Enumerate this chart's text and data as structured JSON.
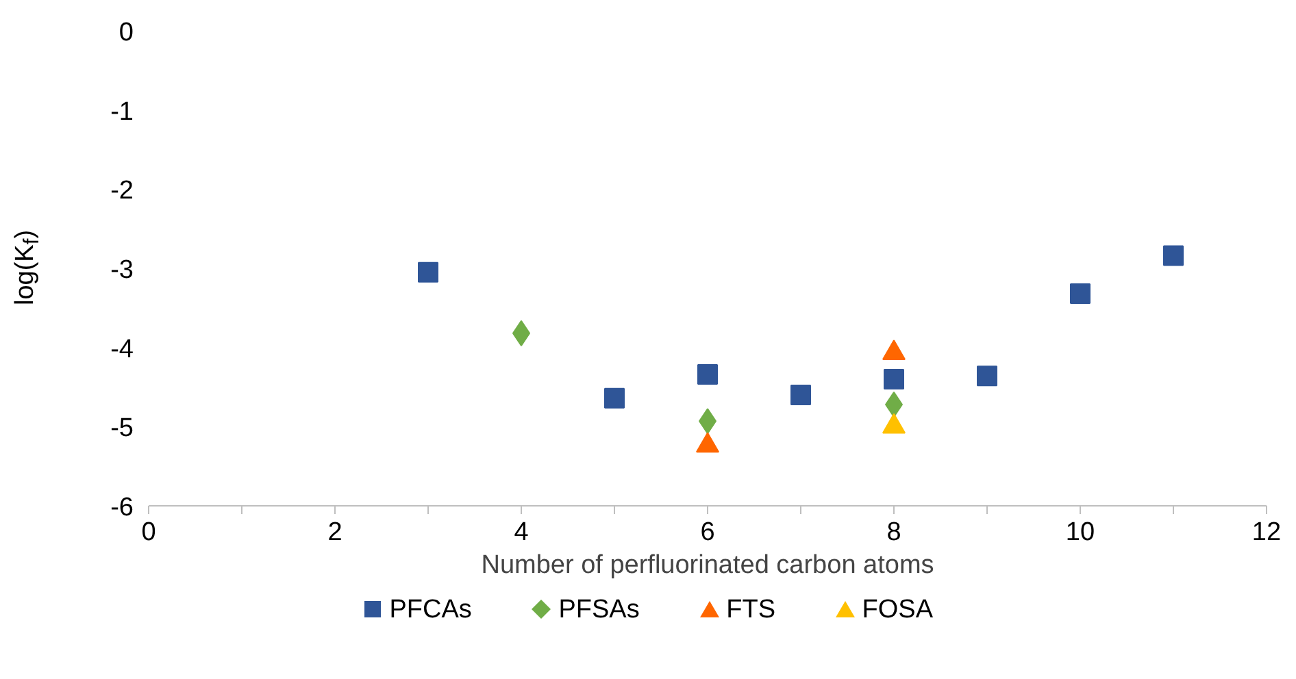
{
  "chart_data": {
    "type": "scatter",
    "xlabel": "Number of perfluorinated carbon atoms",
    "ylabel": "log(K$_{f}$)",
    "xlim": [
      0,
      12
    ],
    "xticks": [
      0,
      {
        "value": 1,
        "label": null
      },
      2,
      {
        "value": 3,
        "label": null
      },
      4,
      {
        "value": 5,
        "label": null
      },
      6,
      {
        "value": 7,
        "label": null
      },
      8,
      {
        "value": 9,
        "label": null
      },
      10,
      {
        "value": 11,
        "label": null
      },
      12
    ],
    "ylim": [
      -6,
      0
    ],
    "yticks": [
      -6,
      -5,
      -4,
      -3,
      -2,
      -1,
      0
    ],
    "grid": false,
    "legend": "bottom",
    "series": [
      {
        "name": "PFCAs",
        "color": "#2f5597",
        "marker": "square",
        "x": [
          3,
          5,
          6,
          7,
          8,
          9,
          10,
          11
        ],
        "values": [
          -3.05,
          -4.64,
          -4.34,
          -4.6,
          -4.4,
          -4.36,
          -3.32,
          -2.84
        ]
      },
      {
        "name": "PFSAs",
        "color": "#70ad47",
        "marker": "diamond",
        "x": [
          4,
          6,
          8
        ],
        "values": [
          -3.82,
          -4.93,
          -4.72
        ]
      },
      {
        "name": "FTS",
        "color": "#ff6600",
        "marker": "triangle",
        "x": [
          6,
          8
        ],
        "values": [
          -5.24,
          -4.07
        ]
      },
      {
        "name": "FOSA",
        "color": "#ffc000",
        "marker": "triangle",
        "x": [
          8
        ],
        "values": [
          -5.0
        ]
      }
    ]
  }
}
